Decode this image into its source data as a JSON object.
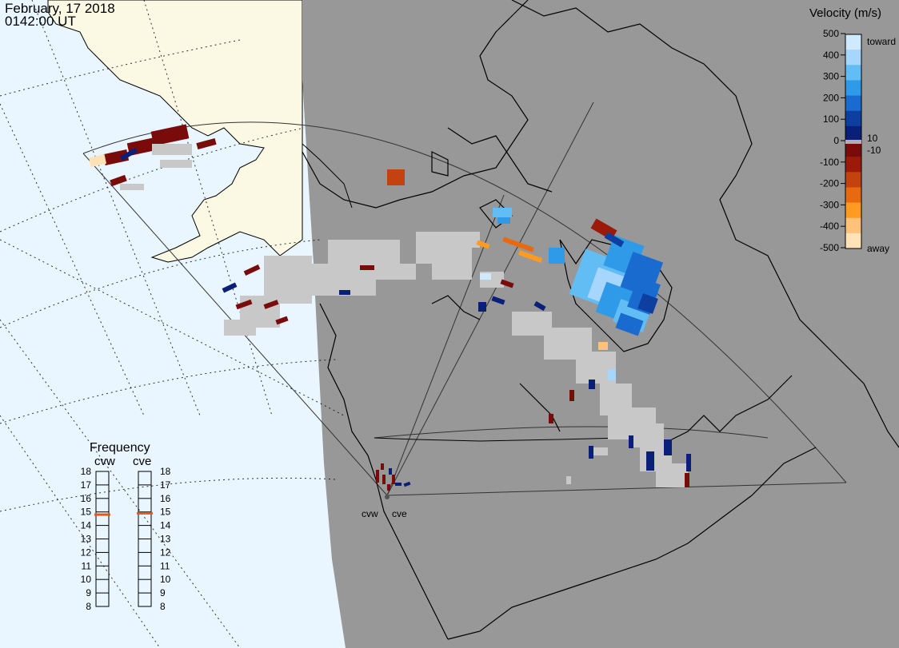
{
  "header": {
    "date": "February, 17 2018",
    "time": "0142:00 UT"
  },
  "colorbar": {
    "title": "Velocity (m/s)",
    "ticks": [
      "500",
      "400",
      "300",
      "200",
      "100",
      "0",
      "-100",
      "-200",
      "-300",
      "-400",
      "-500"
    ],
    "ticks_right": [
      "10",
      "-10"
    ],
    "toward_label": "toward",
    "away_label": "away",
    "colors": [
      "#cfe9ff",
      "#a6d6fb",
      "#62bdf4",
      "#2f9be8",
      "#1a6bd0",
      "#0c3fa0",
      "#0a1f77",
      "#7a0b0b",
      "#9b1a0a",
      "#c44110",
      "#e86a10",
      "#ff9a22",
      "#ffc27a",
      "#ffe2b8"
    ]
  },
  "frequency": {
    "title": "Frequency",
    "radars": [
      {
        "name": "cvw",
        "value": 14.8
      },
      {
        "name": "cve",
        "value": 14.9
      }
    ],
    "scale": [
      "18",
      "17",
      "16",
      "15",
      "14",
      "13",
      "12",
      "11",
      "10",
      "9",
      "8"
    ],
    "marker_color": "#e05a1a"
  },
  "radars": {
    "labels": [
      "cvw",
      "cve"
    ]
  },
  "map_colors": {
    "ocean": "#e9f6ff",
    "land_daylight": "#fbf8e4",
    "night_shade": "#989898",
    "ground_scatter": "#c8c8c8"
  }
}
